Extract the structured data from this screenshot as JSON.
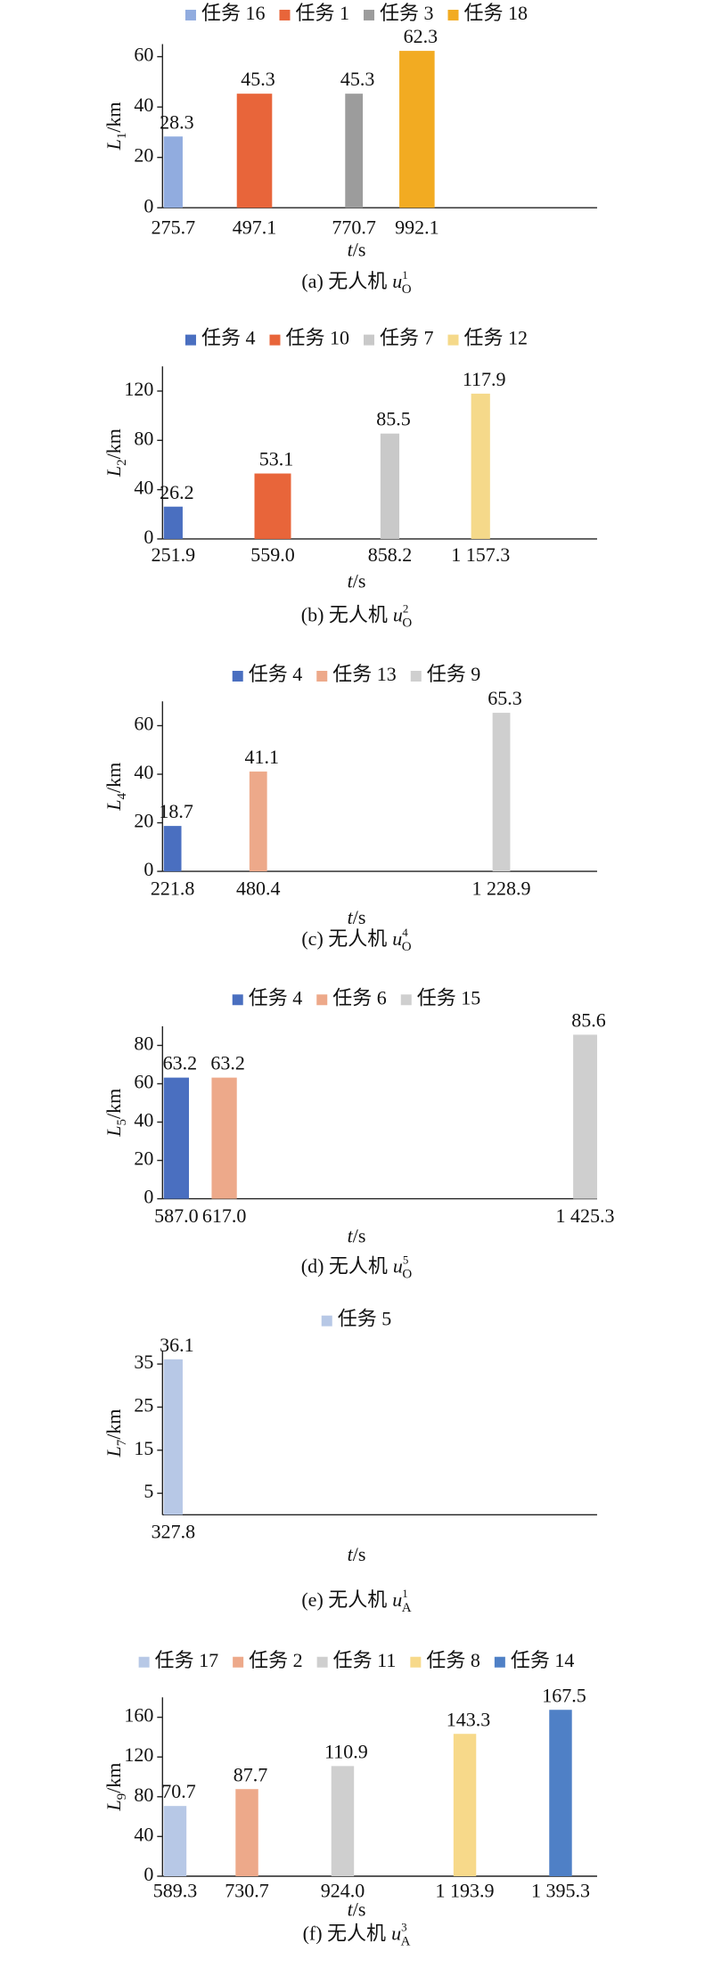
{
  "chart_data": [
    {
      "type": "bar",
      "legend": "top",
      "caption": {
        "text": "(a) 无人机",
        "symbol": "u",
        "sup": "1",
        "sub": "O"
      },
      "ylabel": {
        "symbol": "L",
        "sub": "1",
        "unit": "/km"
      },
      "xlabel": {
        "symbol": "t",
        "unit": "/s"
      },
      "categories": [
        "275.7",
        "497.1",
        "770.7",
        "992.1"
      ],
      "series": [
        {
          "name": "任务 16",
          "color": "#91acdf",
          "values": [
            28.3,
            null,
            null,
            null
          ]
        },
        {
          "name": "任务 1",
          "color": "#e8653a",
          "values": [
            null,
            45.3,
            null,
            null
          ]
        },
        {
          "name": "任务 3",
          "color": "#9c9c9c",
          "values": [
            null,
            null,
            45.3,
            null
          ]
        },
        {
          "name": "任务 18",
          "color": "#f2ab22",
          "values": [
            null,
            null,
            null,
            62.3
          ]
        }
      ],
      "ylim": [
        0,
        65
      ],
      "yticks": [
        0,
        20,
        40,
        60
      ]
    },
    {
      "type": "bar",
      "legend": "top",
      "caption": {
        "text": "(b) 无人机",
        "symbol": "u",
        "sup": "2",
        "sub": "O"
      },
      "ylabel": {
        "symbol": "L",
        "sub": "2",
        "unit": "/km"
      },
      "xlabel": {
        "symbol": "t",
        "unit": "/s"
      },
      "categories": [
        "251.9",
        "559.0",
        "858.2",
        "1 157.3"
      ],
      "series": [
        {
          "name": "任务 4",
          "color": "#4a6fc0",
          "values": [
            26.2,
            null,
            null,
            null
          ]
        },
        {
          "name": "任务 10",
          "color": "#e8653a",
          "values": [
            null,
            53.1,
            null,
            null
          ]
        },
        {
          "name": "任务 7",
          "color": "#c9c9c9",
          "values": [
            null,
            null,
            85.5,
            null
          ]
        },
        {
          "name": "任务 12",
          "color": "#f5d98a",
          "values": [
            null,
            null,
            null,
            117.9
          ]
        }
      ],
      "ylim": [
        0,
        140
      ],
      "yticks": [
        0,
        40,
        80,
        120
      ]
    },
    {
      "type": "bar",
      "legend": "top",
      "caption": {
        "text": "(c) 无人机",
        "symbol": "u",
        "sup": "4",
        "sub": "O"
      },
      "ylabel": {
        "symbol": "L",
        "sub": "4",
        "unit": "/km"
      },
      "xlabel": {
        "symbol": "t",
        "unit": "/s"
      },
      "categories": [
        "221.8",
        "480.4",
        "1 228.9"
      ],
      "series": [
        {
          "name": "任务 4",
          "color": "#4a6fc0",
          "values": [
            18.7,
            null,
            null
          ]
        },
        {
          "name": "任务 13",
          "color": "#eda98a",
          "values": [
            null,
            41.1,
            null
          ]
        },
        {
          "name": "任务 9",
          "color": "#cfcfcf",
          "values": [
            null,
            null,
            65.3
          ]
        }
      ],
      "ylim": [
        0,
        70
      ],
      "yticks": [
        0,
        20,
        40,
        60
      ]
    },
    {
      "type": "bar",
      "legend": "top",
      "caption": {
        "text": "(d) 无人机",
        "symbol": "u",
        "sup": "5",
        "sub": "O"
      },
      "ylabel": {
        "symbol": "L",
        "sub": "5",
        "unit": "/km"
      },
      "xlabel": {
        "symbol": "t",
        "unit": "/s"
      },
      "categories": [
        "587.0",
        "617.0",
        "1 425.3"
      ],
      "series": [
        {
          "name": "任务 4",
          "color": "#4a6fc0",
          "values": [
            63.2,
            null,
            null
          ]
        },
        {
          "name": "任务 6",
          "color": "#eda98a",
          "values": [
            null,
            63.2,
            null
          ]
        },
        {
          "name": "任务 15",
          "color": "#cfcfcf",
          "values": [
            null,
            null,
            85.6
          ]
        }
      ],
      "ylim": [
        0,
        90
      ],
      "yticks": [
        0,
        20,
        40,
        60,
        80
      ]
    },
    {
      "type": "bar",
      "legend": "top",
      "caption": {
        "text": "(e) 无人机",
        "symbol": "u",
        "sup": "1",
        "sub": "A"
      },
      "ylabel": {
        "symbol": "L",
        "sub": "7",
        "unit": "/km"
      },
      "xlabel": {
        "symbol": "t",
        "unit": "/s"
      },
      "categories": [
        "327.8"
      ],
      "series": [
        {
          "name": "任务 5",
          "color": "#b7c8e6",
          "values": [
            36.1
          ]
        }
      ],
      "ylim": [
        0,
        38
      ],
      "yticks": [
        5,
        15,
        25,
        35
      ]
    },
    {
      "type": "bar",
      "legend": "top",
      "caption": {
        "text": "(f) 无人机",
        "symbol": "u",
        "sup": "3",
        "sub": "A"
      },
      "ylabel": {
        "symbol": "L",
        "sub": "9",
        "unit": "/km"
      },
      "xlabel": {
        "symbol": "t",
        "unit": "/s"
      },
      "categories": [
        "589.3",
        "730.7",
        "924.0",
        "1 193.9",
        "1 395.3"
      ],
      "series": [
        {
          "name": "任务 17",
          "color": "#b7c8e6",
          "values": [
            70.7,
            null,
            null,
            null,
            null
          ]
        },
        {
          "name": "任务 2",
          "color": "#eda98a",
          "values": [
            null,
            87.7,
            null,
            null,
            null
          ]
        },
        {
          "name": "任务 11",
          "color": "#cfcfcf",
          "values": [
            null,
            null,
            110.9,
            null,
            null
          ]
        },
        {
          "name": "任务 8",
          "color": "#f7d98a",
          "values": [
            null,
            null,
            null,
            143.3,
            null
          ]
        },
        {
          "name": "任务 14",
          "color": "#4f80c6",
          "values": [
            null,
            null,
            null,
            null,
            167.5
          ]
        }
      ],
      "ylim": [
        0,
        180
      ],
      "yticks": [
        0,
        40,
        80,
        120,
        160
      ]
    }
  ]
}
